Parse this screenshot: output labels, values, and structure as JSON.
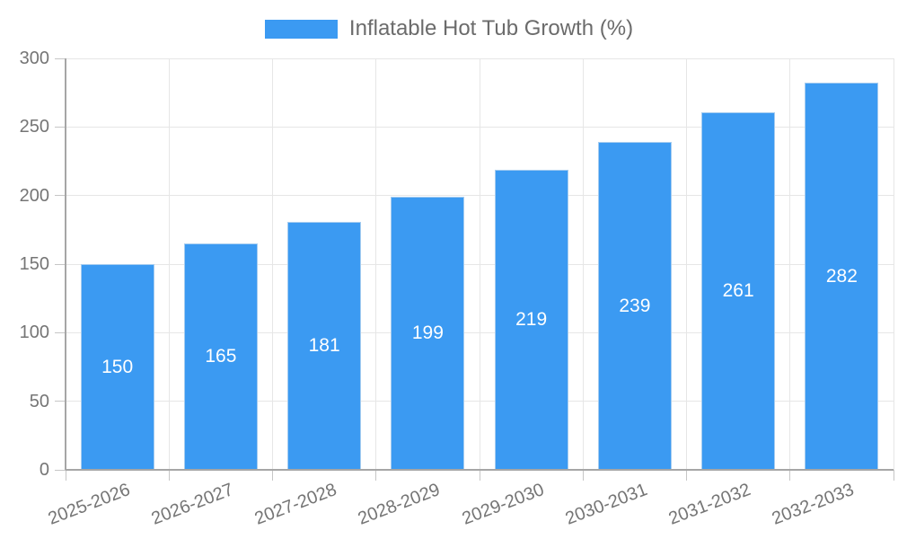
{
  "legend": {
    "label": "Inflatable Hot Tub Growth (%)"
  },
  "colors": {
    "bar": "#3b9af2",
    "bar_border": "#a5ccf0",
    "bar_label": "#ffffff",
    "grid": "#e6e6e6",
    "axis": "#a6a6a6",
    "tick": "#c6c6c6",
    "tick_text": "#757575",
    "legend_text": "#6b6b6b",
    "background": "#ffffff"
  },
  "chart_data": {
    "type": "bar",
    "title": "Inflatable Hot Tub Growth (%)",
    "categories": [
      "2025-2026",
      "2026-2027",
      "2027-2028",
      "2028-2029",
      "2029-2030",
      "2030-2031",
      "2031-2032",
      "2032-2033"
    ],
    "values": [
      150,
      165,
      181,
      199,
      219,
      239,
      261,
      282
    ],
    "xlabel": "",
    "ylabel": "",
    "ylim": [
      0,
      300
    ],
    "yticks": [
      0,
      50,
      100,
      150,
      200,
      250,
      300
    ],
    "grid": true,
    "legend_position": "top",
    "bar_label_position": "inside-center"
  }
}
